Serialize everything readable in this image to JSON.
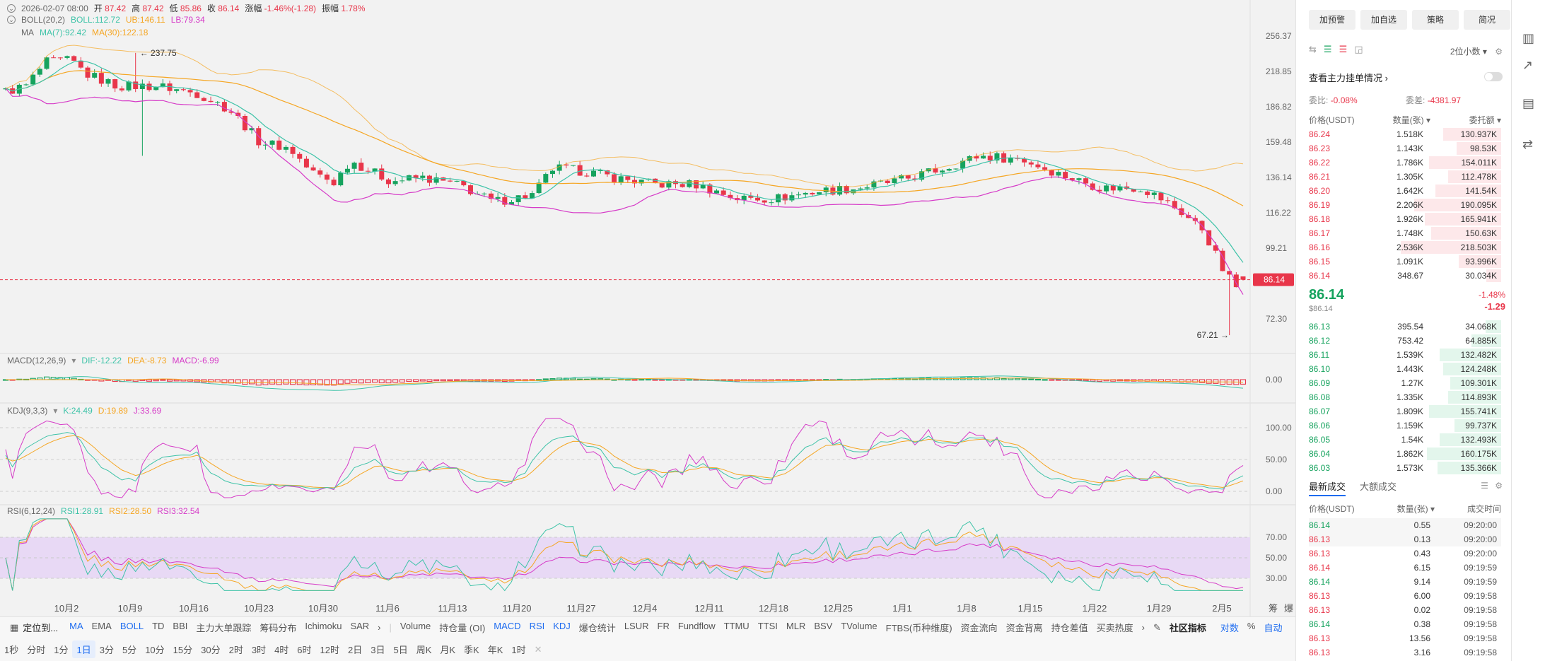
{
  "header": {
    "date": "2026-02-07 08:00",
    "open_label": "开",
    "open": "87.42",
    "high_label": "高",
    "high": "87.42",
    "low_label": "低",
    "low": "85.86",
    "close_label": "收",
    "close": "86.14",
    "change_label": "涨幅",
    "change": "-1.46%(-1.28)",
    "amp_label": "振幅",
    "amp": "1.78%"
  },
  "boll": {
    "name": "BOLL(20,2)",
    "mid": "BOLL:112.72",
    "ub": "UB:146.11",
    "lb": "LB:79.34"
  },
  "ma": {
    "name": "MA",
    "ma7": "MA(7):92.42",
    "ma30": "MA(30):122.18"
  },
  "macd": {
    "name": "MACD(12,26,9)",
    "dif": "DIF:-12.22",
    "dea": "DEA:-8.73",
    "macd": "MACD:-6.99"
  },
  "kdj": {
    "name": "KDJ(9,3,3)",
    "k": "K:24.49",
    "d": "D:19.89",
    "j": "J:33.69"
  },
  "rsi": {
    "name": "RSI(6,12,24)",
    "r1": "RSI1:28.91",
    "r2": "RSI2:28.50",
    "r3": "RSI3:32.54"
  },
  "price_axis": [
    "256.37",
    "218.85",
    "186.82",
    "159.48",
    "136.14",
    "116.22",
    "99.21",
    "72.30"
  ],
  "current_price_tag": "86.14",
  "max_label": "237.75",
  "min_label": "67.21",
  "macd_axis": [
    "0.00"
  ],
  "kdj_axis": [
    "100.00",
    "50.00",
    "0.00"
  ],
  "rsi_axis": [
    "70.00",
    "50.00",
    "30.00"
  ],
  "x_axis": [
    "10月2",
    "10月9",
    "10月16",
    "10月23",
    "10月30",
    "11月6",
    "11月13",
    "11月20",
    "11月27",
    "12月4",
    "12月11",
    "12月18",
    "12月25",
    "1月1",
    "1月8",
    "1月15",
    "1月22",
    "1月29",
    "2月5"
  ],
  "x_axis_right": [
    "筹",
    "爆"
  ],
  "toolbar": {
    "locate": "定位到...",
    "main_indicators": [
      "MA",
      "EMA",
      "BOLL",
      "TD",
      "BBI",
      "主力大单跟踪",
      "筹码分布",
      "Ichimoku",
      "SAR"
    ],
    "sub_indicators": [
      "Volume",
      "持仓量 (OI)",
      "MACD",
      "RSI",
      "KDJ",
      "爆仓统计",
      "LSUR",
      "FR",
      "Fundflow",
      "TTMU",
      "TTSI",
      "MLR",
      "BSV",
      "TVolume",
      "FTBS(币种维度)",
      "资金流向",
      "资金背离",
      "持仓差值",
      "买卖热度"
    ],
    "community": "社区指标",
    "scale_modes": [
      "对数",
      "%",
      "自动"
    ]
  },
  "intervals": [
    "1秒",
    "分时",
    "1分",
    "1日",
    "3分",
    "5分",
    "10分",
    "15分",
    "30分",
    "2时",
    "3时",
    "4时",
    "6时",
    "12时",
    "2日",
    "3日",
    "5日",
    "周K",
    "月K",
    "季K",
    "年K",
    "1时"
  ],
  "panel": {
    "buttons": [
      "加预警",
      "加自选",
      "策略",
      "简况"
    ],
    "decimals": "2位小数",
    "main_order_link": "查看主力挂单情况",
    "ratio_label": "委比:",
    "ratio": "-0.08%",
    "diff_label": "委差:",
    "diff": "-4381.97",
    "col_price": "价格(USDT)",
    "col_qty": "数量(张)",
    "col_total": "委托额",
    "asks": [
      {
        "p": "86.24",
        "q": "1.518K",
        "t": "130.937K",
        "w": 0.55
      },
      {
        "p": "86.23",
        "q": "1.143K",
        "t": "98.53K",
        "w": 0.42
      },
      {
        "p": "86.22",
        "q": "1.786K",
        "t": "154.011K",
        "w": 0.68
      },
      {
        "p": "86.21",
        "q": "1.305K",
        "t": "112.478K",
        "w": 0.5
      },
      {
        "p": "86.20",
        "q": "1.642K",
        "t": "141.54K",
        "w": 0.62
      },
      {
        "p": "86.19",
        "q": "2.206K",
        "t": "190.095K",
        "w": 0.82
      },
      {
        "p": "86.18",
        "q": "1.926K",
        "t": "165.941K",
        "w": 0.72
      },
      {
        "p": "86.17",
        "q": "1.748K",
        "t": "150.63K",
        "w": 0.66
      },
      {
        "p": "86.16",
        "q": "2.536K",
        "t": "218.503K",
        "w": 0.95
      },
      {
        "p": "86.15",
        "q": "1.091K",
        "t": "93.996K",
        "w": 0.4
      },
      {
        "p": "86.14",
        "q": "348.67",
        "t": "30.034K",
        "w": 0.14
      }
    ],
    "last_price": "86.14",
    "last_price_usd": "$86.14",
    "last_change_pct": "-1.48%",
    "last_change": "-1.29",
    "bids": [
      {
        "p": "86.13",
        "q": "395.54",
        "t": "34.068K",
        "w": 0.15
      },
      {
        "p": "86.12",
        "q": "753.42",
        "t": "64.885K",
        "w": 0.28
      },
      {
        "p": "86.11",
        "q": "1.539K",
        "t": "132.482K",
        "w": 0.58
      },
      {
        "p": "86.10",
        "q": "1.443K",
        "t": "124.248K",
        "w": 0.55
      },
      {
        "p": "86.09",
        "q": "1.27K",
        "t": "109.301K",
        "w": 0.48
      },
      {
        "p": "86.08",
        "q": "1.335K",
        "t": "114.893K",
        "w": 0.5
      },
      {
        "p": "86.07",
        "q": "1.809K",
        "t": "155.741K",
        "w": 0.68
      },
      {
        "p": "86.06",
        "q": "1.159K",
        "t": "99.737K",
        "w": 0.44
      },
      {
        "p": "86.05",
        "q": "1.54K",
        "t": "132.493K",
        "w": 0.58
      },
      {
        "p": "86.04",
        "q": "1.862K",
        "t": "160.175K",
        "w": 0.7
      },
      {
        "p": "86.03",
        "q": "1.573K",
        "t": "135.366K",
        "w": 0.6
      }
    ],
    "trades_tab_latest": "最新成交",
    "trades_tab_large": "大额成交",
    "trades_col_price": "价格(USDT)",
    "trades_col_qty": "数量(张)",
    "trades_col_time": "成交时间",
    "trades": [
      {
        "p": "86.14",
        "q": "0.55",
        "t": "09:20:00",
        "side": "buy"
      },
      {
        "p": "86.13",
        "q": "0.13",
        "t": "09:20:00",
        "side": "sell"
      },
      {
        "p": "86.13",
        "q": "0.43",
        "t": "09:20:00",
        "side": "sell"
      },
      {
        "p": "86.14",
        "q": "6.15",
        "t": "09:19:59",
        "side": "sell"
      },
      {
        "p": "86.14",
        "q": "9.14",
        "t": "09:19:59",
        "side": "buy"
      },
      {
        "p": "86.13",
        "q": "6.00",
        "t": "09:19:58",
        "side": "sell"
      },
      {
        "p": "86.13",
        "q": "0.02",
        "t": "09:19:58",
        "side": "sell"
      },
      {
        "p": "86.14",
        "q": "0.38",
        "t": "09:19:58",
        "side": "buy"
      },
      {
        "p": "86.13",
        "q": "13.56",
        "t": "09:19:58",
        "side": "sell"
      },
      {
        "p": "86.13",
        "q": "3.16",
        "t": "09:19:58",
        "side": "sell"
      }
    ]
  },
  "colors": {
    "up": "#16a35e",
    "down": "#e8364a",
    "ma7": "#3ec3a8",
    "ma30": "#f5a623",
    "lb": "#d63cc8",
    "boll": "#f5a623",
    "accent": "#1e6cf0"
  }
}
